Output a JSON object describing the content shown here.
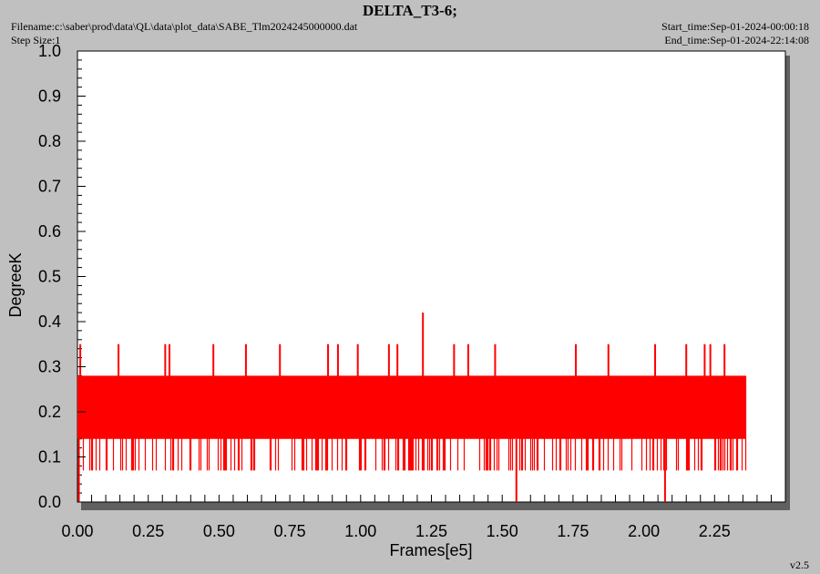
{
  "header": {
    "title": "DELTA_T3-6;",
    "filename": "Filename:c:\\saber\\prod\\data\\QL\\data\\plot_data\\SABE_Tlm2024245000000.dat",
    "step_size": "Step Size:1",
    "start_time": "Start_time:Sep-01-2024-00:00:18",
    "end_time": "End_time:Sep-01-2024-22:14:08"
  },
  "footer": {
    "version": "v2.5"
  },
  "chart_data": {
    "type": "line",
    "title": "DELTA_T3-6;",
    "xlabel": "Frames[e5]",
    "ylabel": "DegreeK",
    "xlim": [
      0,
      2.5
    ],
    "ylim": [
      0,
      1.0
    ],
    "x_ticks": [
      "0.00",
      "0.25",
      "0.50",
      "0.75",
      "1.00",
      "1.25",
      "1.50",
      "1.75",
      "2.00",
      "2.25"
    ],
    "y_ticks": [
      "0.0",
      "0.1",
      "0.2",
      "0.3",
      "0.4",
      "0.5",
      "0.6",
      "0.7",
      "0.8",
      "0.9",
      "1.0"
    ],
    "grid": false,
    "series": [
      {
        "color": "#ff0000",
        "x_range": [
          0,
          2.36
        ],
        "band_low": 0.14,
        "band_high": 0.28,
        "quantized_levels": [
          0.0,
          0.07,
          0.14,
          0.21,
          0.28,
          0.35,
          0.42
        ],
        "spikes_high": [
          {
            "x": 0.01,
            "y": 0.35
          },
          {
            "x": 0.145,
            "y": 0.35
          },
          {
            "x": 0.31,
            "y": 0.35
          },
          {
            "x": 0.325,
            "y": 0.35
          },
          {
            "x": 0.48,
            "y": 0.35
          },
          {
            "x": 0.595,
            "y": 0.35
          },
          {
            "x": 0.715,
            "y": 0.35
          },
          {
            "x": 0.885,
            "y": 0.35
          },
          {
            "x": 0.92,
            "y": 0.35
          },
          {
            "x": 0.99,
            "y": 0.35
          },
          {
            "x": 1.1,
            "y": 0.35
          },
          {
            "x": 1.13,
            "y": 0.35
          },
          {
            "x": 1.22,
            "y": 0.42
          },
          {
            "x": 1.33,
            "y": 0.35
          },
          {
            "x": 1.38,
            "y": 0.35
          },
          {
            "x": 1.475,
            "y": 0.35
          },
          {
            "x": 1.76,
            "y": 0.35
          },
          {
            "x": 1.875,
            "y": 0.35
          },
          {
            "x": 2.04,
            "y": 0.35
          },
          {
            "x": 2.15,
            "y": 0.35
          },
          {
            "x": 2.215,
            "y": 0.35
          },
          {
            "x": 2.235,
            "y": 0.35
          },
          {
            "x": 2.285,
            "y": 0.35
          }
        ],
        "spikes_low": [
          {
            "x": 0.005,
            "y": 0.0
          },
          {
            "x": 1.55,
            "y": 0.0
          },
          {
            "x": 2.075,
            "y": 0.0
          }
        ]
      }
    ]
  }
}
